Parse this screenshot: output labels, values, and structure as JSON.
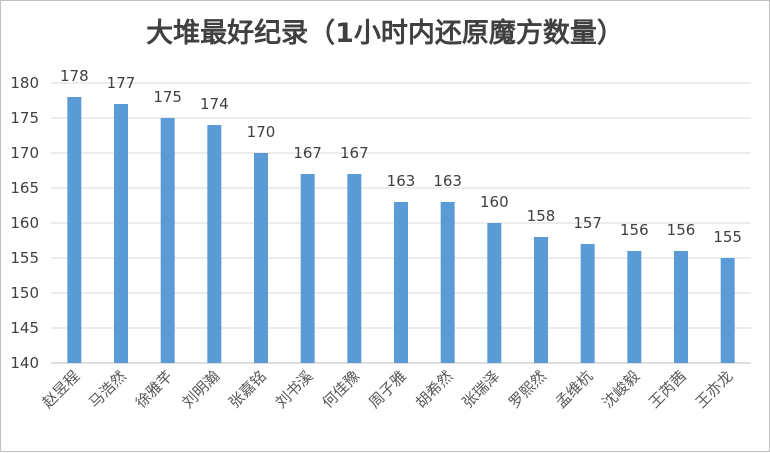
{
  "chart_data": {
    "type": "bar",
    "title": "大堆最好纪录（1小时内还原魔方数量）",
    "categories": [
      "赵昱程",
      "马浩然",
      "徐雅芊",
      "刘明瀚",
      "张嘉铭",
      "刘书溪",
      "何佳豫",
      "周子雅",
      "胡希然",
      "张瑞泽",
      "罗熙然",
      "孟维杭",
      "沈峻毅",
      "王芮茜",
      "王亦龙"
    ],
    "values": [
      178,
      177,
      175,
      174,
      170,
      167,
      167,
      163,
      163,
      160,
      158,
      157,
      156,
      156,
      155
    ],
    "yticks": [
      140,
      145,
      150,
      155,
      160,
      165,
      170,
      175,
      180
    ],
    "ylim": [
      140,
      180
    ],
    "grid": true,
    "legend": "none",
    "bar_color": "#5b9bd5",
    "grid_color": "#d9d9d9"
  }
}
